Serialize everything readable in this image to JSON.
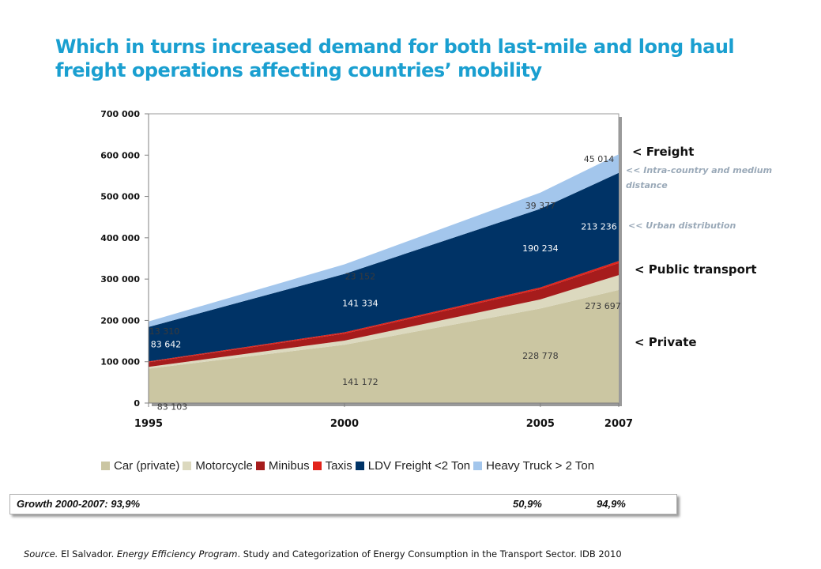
{
  "title": {
    "line1": "Which in turns increased demand for both last-mile and long haul",
    "line2": "freight operations affecting countries’ mobility"
  },
  "chart_data": {
    "type": "area",
    "stacked": true,
    "x": [
      1995,
      2000,
      2005,
      2007
    ],
    "xticks": [
      "1995",
      "2000",
      "2005",
      "2007"
    ],
    "ylim": [
      0,
      700000
    ],
    "yticks": [
      "0",
      "100 000",
      "200 000",
      "300 000",
      "400 000",
      "500 000",
      "600 000",
      "700 000"
    ],
    "grid": false,
    "legend_position": "bottom",
    "series": [
      {
        "name": "Car (private)",
        "color": "#cbc6a2",
        "values": [
          83103,
          141172,
          228778,
          273697
        ]
      },
      {
        "name": "Motorcycle",
        "color": "#dcd9bf",
        "values": [
          4500,
          10000,
          22000,
          36000
        ]
      },
      {
        "name": "Minibus",
        "color": "#a61c1c",
        "values": [
          11000,
          17000,
          25000,
          29000
        ]
      },
      {
        "name": "Taxis",
        "color": "#e2231a",
        "values": [
          2000,
          3000,
          4000,
          5000
        ]
      },
      {
        "name": "LDV Freight <2 Ton",
        "color": "#003366",
        "values": [
          83642,
          141334,
          190234,
          213236
        ]
      },
      {
        "name": "Heavy Truck > 2 Ton",
        "color": "#a3c6ec",
        "values": [
          13310,
          23152,
          39377,
          45014
        ]
      }
    ],
    "data_labels": [
      {
        "text": "83 103",
        "series": 0,
        "i": 0
      },
      {
        "text": "141 172",
        "series": 0,
        "i": 1
      },
      {
        "text": "228 778",
        "series": 0,
        "i": 2
      },
      {
        "text": "273 697",
        "series": 0,
        "i": 3
      },
      {
        "text": "83 642",
        "series": 4,
        "i": 0
      },
      {
        "text": "141 334",
        "series": 4,
        "i": 1
      },
      {
        "text": "190 234",
        "series": 4,
        "i": 2
      },
      {
        "text": "213 236",
        "series": 4,
        "i": 3
      },
      {
        "text": "13 310",
        "series": 5,
        "i": 0
      },
      {
        "text": "23 152",
        "series": 5,
        "i": 1
      },
      {
        "text": "39 377",
        "series": 5,
        "i": 2
      },
      {
        "text": "45 014",
        "series": 5,
        "i": 3
      }
    ]
  },
  "annotations": {
    "freight": "< Freight",
    "intra": "<< Intra-country and medium",
    "intra2": "distance",
    "urban": "<< Urban distribution",
    "public": "< Public transport",
    "private": "< Private"
  },
  "growth": {
    "label": "Growth 2000-2007: 93,9%",
    "value2": "50,9%",
    "value3": "94,9%"
  },
  "source": {
    "prefix": "Source.",
    "org": "El Salvador.",
    "program": "Energy Efficiency Program",
    "rest": ". Study and Categorization of Energy Consumption in the Transport Sector. IDB 2010"
  }
}
